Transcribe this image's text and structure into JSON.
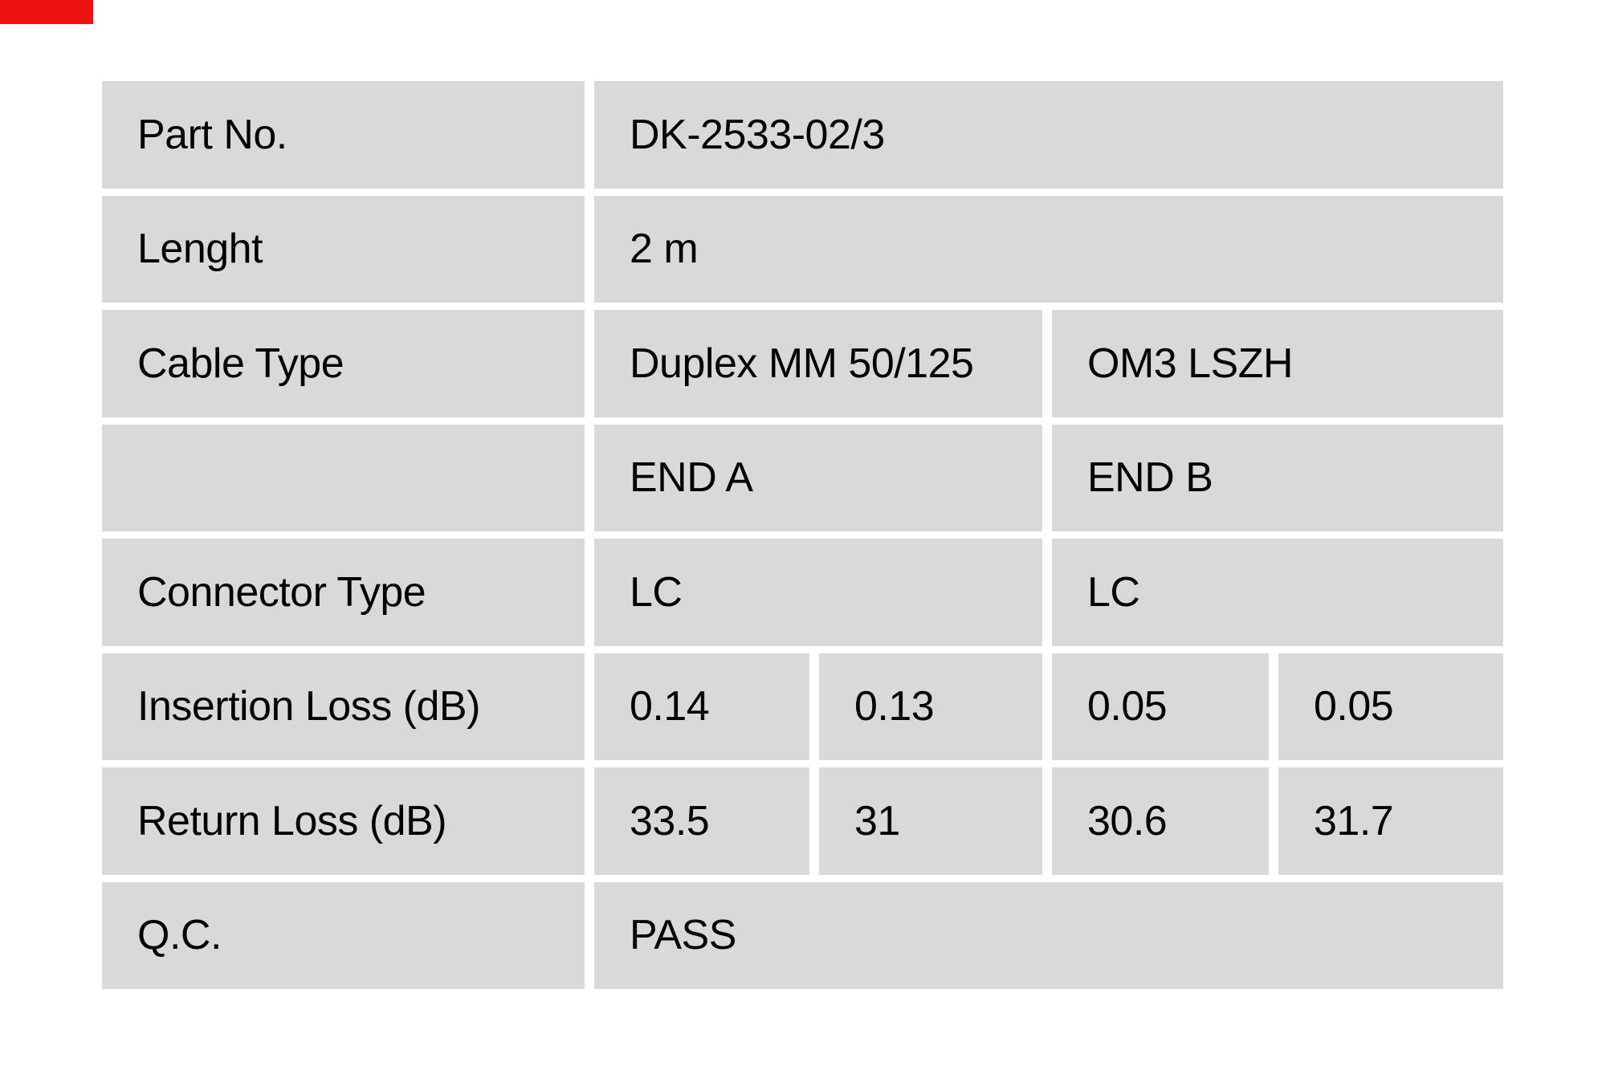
{
  "annotation_marker": {
    "color": "#ee1111"
  },
  "table": {
    "cell_color": "#d9d9d9",
    "text_color": "#000000",
    "rows": [
      {
        "label": "Part No.",
        "value": "DK-2533-02/3"
      },
      {
        "label": "Lenght",
        "value": "2 m"
      },
      {
        "label": "Cable Type",
        "value_a": "Duplex MM 50/125",
        "value_b": "OM3 LSZH"
      },
      {
        "label": "",
        "value_a": "END A",
        "value_b": "END B"
      },
      {
        "label": "Connector Type",
        "value_a": "LC",
        "value_b": "LC"
      },
      {
        "label": "Insertion Loss (dB)",
        "values": [
          "0.14",
          "0.13",
          "0.05",
          "0.05"
        ]
      },
      {
        "label": "Return Loss (dB)",
        "values": [
          "33.5",
          "31",
          "30.6",
          "31.7"
        ]
      },
      {
        "label": "Q.C.",
        "value": "PASS"
      }
    ]
  }
}
